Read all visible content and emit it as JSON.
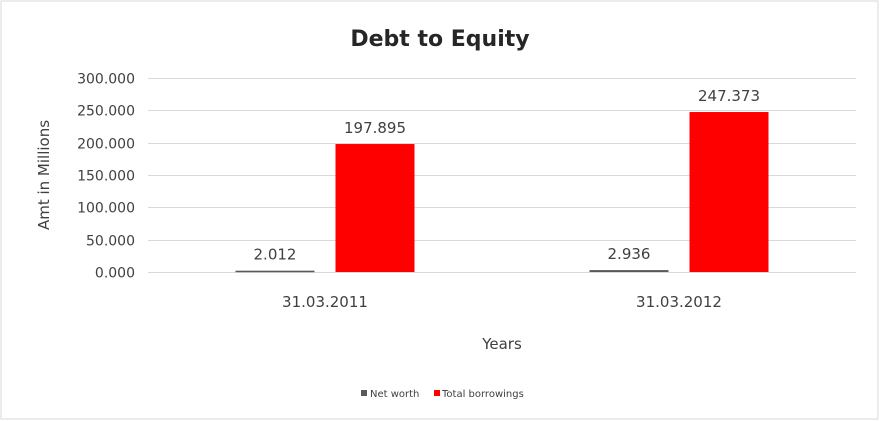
{
  "chart_data": {
    "type": "bar",
    "title": "Debt to Equity",
    "xlabel": "Years",
    "ylabel": "Amt in Millions",
    "categories": [
      "31.03.2011",
      "31.03.2012"
    ],
    "series": [
      {
        "name": "Net worth",
        "values": [
          2.012,
          2.936
        ],
        "labels": [
          "2.012",
          "2.936"
        ],
        "color": "#595959"
      },
      {
        "name": "Total borrowings",
        "values": [
          197.895,
          247.373
        ],
        "labels": [
          "197.895",
          "247.373"
        ],
        "color": "#ff0000"
      }
    ],
    "ylim": [
      0,
      300
    ],
    "yticks": [
      "0.000",
      "50.000",
      "100.000",
      "150.000",
      "200.000",
      "250.000",
      "300.000"
    ],
    "grid": true,
    "legend": "bottom"
  }
}
